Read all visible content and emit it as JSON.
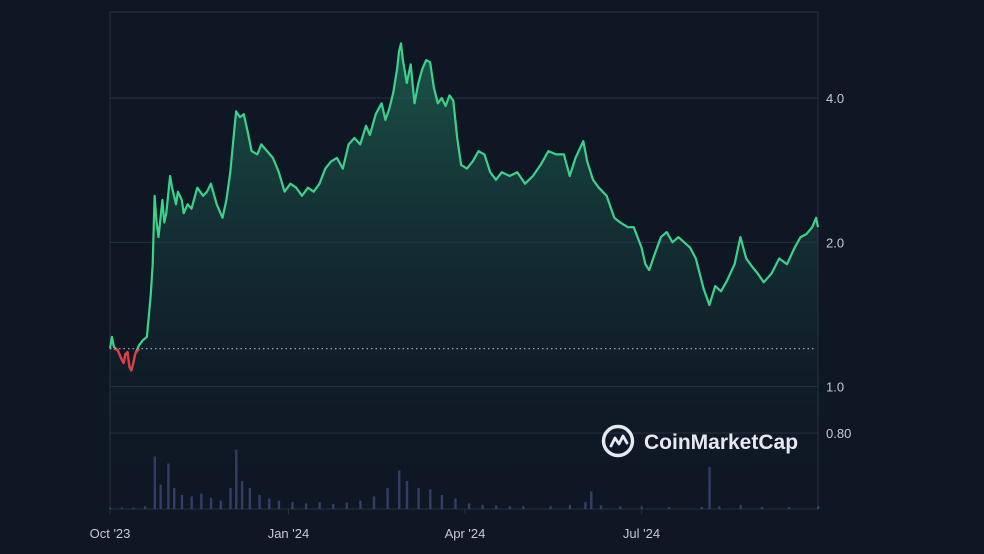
{
  "brand": {
    "watermark": "CoinMarketCap",
    "logo_icon": "coinmarketcap-logo-icon"
  },
  "colors": {
    "background": "#0f1624",
    "up_line": "#3bd38c",
    "down_line": "#ea3943",
    "volume": "#3f4a7c",
    "grid": "#2a3342",
    "baseline": "#9aa3b2"
  },
  "chart_data": {
    "type": "area",
    "scale": "log",
    "grid": true,
    "legend": "none",
    "x_range": [
      "2023-10-01",
      "2024-09-30"
    ],
    "ylim": [
      0.8,
      5.5
    ],
    "y_ticks": [
      {
        "value": 0.8,
        "label": "0.80"
      },
      {
        "value": 1.0,
        "label": "1.0"
      },
      {
        "value": 2.0,
        "label": "2.0"
      },
      {
        "value": 4.0,
        "label": "4.0"
      }
    ],
    "x_ticks": [
      {
        "date": "2023-10-01",
        "label": "Oct '23"
      },
      {
        "date": "2024-01-01",
        "label": "Jan '24"
      },
      {
        "date": "2024-04-01",
        "label": "Apr '24"
      },
      {
        "date": "2024-07-01",
        "label": "Jul '24"
      }
    ],
    "baseline_value": 1.2,
    "price_series": [
      [
        "2023-10-01",
        1.2
      ],
      [
        "2023-10-02",
        1.27
      ],
      [
        "2023-10-03",
        1.21
      ],
      [
        "2023-10-05",
        1.19
      ],
      [
        "2023-10-07",
        1.14
      ],
      [
        "2023-10-08",
        1.12
      ],
      [
        "2023-10-09",
        1.17
      ],
      [
        "2023-10-10",
        1.18
      ],
      [
        "2023-10-11",
        1.1
      ],
      [
        "2023-10-12",
        1.08
      ],
      [
        "2023-10-13",
        1.12
      ],
      [
        "2023-10-14",
        1.17
      ],
      [
        "2023-10-16",
        1.22
      ],
      [
        "2023-10-18",
        1.25
      ],
      [
        "2023-10-20",
        1.27
      ],
      [
        "2023-10-22",
        1.55
      ],
      [
        "2023-10-23",
        1.8
      ],
      [
        "2023-10-24",
        2.5
      ],
      [
        "2023-10-25",
        2.2
      ],
      [
        "2023-10-26",
        2.05
      ],
      [
        "2023-10-28",
        2.45
      ],
      [
        "2023-10-29",
        2.2
      ],
      [
        "2023-10-30",
        2.3
      ],
      [
        "2023-11-01",
        2.75
      ],
      [
        "2023-11-02",
        2.6
      ],
      [
        "2023-11-04",
        2.4
      ],
      [
        "2023-11-05",
        2.55
      ],
      [
        "2023-11-07",
        2.45
      ],
      [
        "2023-11-08",
        2.3
      ],
      [
        "2023-11-10",
        2.4
      ],
      [
        "2023-11-12",
        2.35
      ],
      [
        "2023-11-15",
        2.6
      ],
      [
        "2023-11-18",
        2.5
      ],
      [
        "2023-11-20",
        2.55
      ],
      [
        "2023-11-22",
        2.65
      ],
      [
        "2023-11-25",
        2.4
      ],
      [
        "2023-11-28",
        2.25
      ],
      [
        "2023-11-30",
        2.45
      ],
      [
        "2023-12-02",
        2.8
      ],
      [
        "2023-12-04",
        3.4
      ],
      [
        "2023-12-05",
        3.75
      ],
      [
        "2023-12-07",
        3.65
      ],
      [
        "2023-12-09",
        3.7
      ],
      [
        "2023-12-11",
        3.4
      ],
      [
        "2023-12-13",
        3.1
      ],
      [
        "2023-12-16",
        3.05
      ],
      [
        "2023-12-18",
        3.2
      ],
      [
        "2023-12-21",
        3.1
      ],
      [
        "2023-12-24",
        3.0
      ],
      [
        "2023-12-27",
        2.8
      ],
      [
        "2023-12-30",
        2.55
      ],
      [
        "2024-01-02",
        2.65
      ],
      [
        "2024-01-05",
        2.6
      ],
      [
        "2024-01-08",
        2.5
      ],
      [
        "2024-01-11",
        2.6
      ],
      [
        "2024-01-14",
        2.55
      ],
      [
        "2024-01-17",
        2.65
      ],
      [
        "2024-01-20",
        2.85
      ],
      [
        "2024-01-23",
        2.95
      ],
      [
        "2024-01-26",
        3.0
      ],
      [
        "2024-01-29",
        2.85
      ],
      [
        "2024-02-01",
        3.2
      ],
      [
        "2024-02-04",
        3.3
      ],
      [
        "2024-02-07",
        3.2
      ],
      [
        "2024-02-10",
        3.5
      ],
      [
        "2024-02-12",
        3.35
      ],
      [
        "2024-02-15",
        3.7
      ],
      [
        "2024-02-18",
        3.9
      ],
      [
        "2024-02-20",
        3.6
      ],
      [
        "2024-02-22",
        3.8
      ],
      [
        "2024-02-24",
        4.1
      ],
      [
        "2024-02-26",
        4.6
      ],
      [
        "2024-02-27",
        5.0
      ],
      [
        "2024-02-28",
        5.2
      ],
      [
        "2024-02-29",
        4.8
      ],
      [
        "2024-03-02",
        4.3
      ],
      [
        "2024-03-04",
        4.7
      ],
      [
        "2024-03-06",
        3.9
      ],
      [
        "2024-03-08",
        4.3
      ],
      [
        "2024-03-10",
        4.6
      ],
      [
        "2024-03-12",
        4.8
      ],
      [
        "2024-03-14",
        4.75
      ],
      [
        "2024-03-16",
        4.2
      ],
      [
        "2024-03-18",
        3.9
      ],
      [
        "2024-03-20",
        4.0
      ],
      [
        "2024-03-22",
        3.85
      ],
      [
        "2024-03-24",
        4.05
      ],
      [
        "2024-03-26",
        3.95
      ],
      [
        "2024-03-28",
        3.3
      ],
      [
        "2024-03-30",
        2.9
      ],
      [
        "2024-04-02",
        2.85
      ],
      [
        "2024-04-05",
        2.95
      ],
      [
        "2024-04-08",
        3.1
      ],
      [
        "2024-04-11",
        3.05
      ],
      [
        "2024-04-14",
        2.8
      ],
      [
        "2024-04-17",
        2.7
      ],
      [
        "2024-04-20",
        2.8
      ],
      [
        "2024-04-24",
        2.75
      ],
      [
        "2024-04-28",
        2.8
      ],
      [
        "2024-05-02",
        2.65
      ],
      [
        "2024-05-06",
        2.75
      ],
      [
        "2024-05-10",
        2.9
      ],
      [
        "2024-05-14",
        3.1
      ],
      [
        "2024-05-18",
        3.05
      ],
      [
        "2024-05-22",
        3.05
      ],
      [
        "2024-05-25",
        2.75
      ],
      [
        "2024-05-28",
        3.0
      ],
      [
        "2024-06-01",
        3.25
      ],
      [
        "2024-06-03",
        2.95
      ],
      [
        "2024-06-06",
        2.7
      ],
      [
        "2024-06-09",
        2.6
      ],
      [
        "2024-06-13",
        2.5
      ],
      [
        "2024-06-17",
        2.25
      ],
      [
        "2024-06-20",
        2.2
      ],
      [
        "2024-06-24",
        2.15
      ],
      [
        "2024-06-27",
        2.15
      ],
      [
        "2024-07-01",
        1.95
      ],
      [
        "2024-07-03",
        1.8
      ],
      [
        "2024-07-05",
        1.75
      ],
      [
        "2024-07-08",
        1.9
      ],
      [
        "2024-07-11",
        2.05
      ],
      [
        "2024-07-14",
        2.1
      ],
      [
        "2024-07-17",
        2.0
      ],
      [
        "2024-07-20",
        2.05
      ],
      [
        "2024-07-23",
        2.0
      ],
      [
        "2024-07-26",
        1.95
      ],
      [
        "2024-07-29",
        1.85
      ],
      [
        "2024-08-02",
        1.6
      ],
      [
        "2024-08-05",
        1.48
      ],
      [
        "2024-08-08",
        1.62
      ],
      [
        "2024-08-11",
        1.58
      ],
      [
        "2024-08-14",
        1.66
      ],
      [
        "2024-08-18",
        1.8
      ],
      [
        "2024-08-21",
        2.05
      ],
      [
        "2024-08-24",
        1.85
      ],
      [
        "2024-08-27",
        1.78
      ],
      [
        "2024-08-30",
        1.72
      ],
      [
        "2024-09-02",
        1.65
      ],
      [
        "2024-09-06",
        1.72
      ],
      [
        "2024-09-10",
        1.85
      ],
      [
        "2024-09-14",
        1.8
      ],
      [
        "2024-09-18",
        1.95
      ],
      [
        "2024-09-21",
        2.05
      ],
      [
        "2024-09-24",
        2.08
      ],
      [
        "2024-09-27",
        2.15
      ],
      [
        "2024-09-29",
        2.25
      ],
      [
        "2024-09-30",
        2.15
      ]
    ],
    "volume_relative": [
      [
        "2023-10-01",
        0.02
      ],
      [
        "2023-10-07",
        0.02
      ],
      [
        "2023-10-13",
        0.02
      ],
      [
        "2023-10-19",
        0.04
      ],
      [
        "2023-10-24",
        0.75
      ],
      [
        "2023-10-27",
        0.35
      ],
      [
        "2023-10-31",
        0.65
      ],
      [
        "2023-11-03",
        0.3
      ],
      [
        "2023-11-07",
        0.2
      ],
      [
        "2023-11-12",
        0.18
      ],
      [
        "2023-11-17",
        0.22
      ],
      [
        "2023-11-22",
        0.16
      ],
      [
        "2023-11-27",
        0.12
      ],
      [
        "2023-12-02",
        0.3
      ],
      [
        "2023-12-05",
        0.85
      ],
      [
        "2023-12-08",
        0.4
      ],
      [
        "2023-12-12",
        0.3
      ],
      [
        "2023-12-17",
        0.2
      ],
      [
        "2023-12-22",
        0.15
      ],
      [
        "2023-12-27",
        0.12
      ],
      [
        "2024-01-03",
        0.1
      ],
      [
        "2024-01-10",
        0.08
      ],
      [
        "2024-01-17",
        0.1
      ],
      [
        "2024-01-24",
        0.07
      ],
      [
        "2024-01-31",
        0.09
      ],
      [
        "2024-02-07",
        0.12
      ],
      [
        "2024-02-14",
        0.18
      ],
      [
        "2024-02-21",
        0.3
      ],
      [
        "2024-02-27",
        0.55
      ],
      [
        "2024-03-02",
        0.4
      ],
      [
        "2024-03-08",
        0.3
      ],
      [
        "2024-03-14",
        0.28
      ],
      [
        "2024-03-20",
        0.2
      ],
      [
        "2024-03-27",
        0.15
      ],
      [
        "2024-04-03",
        0.08
      ],
      [
        "2024-04-10",
        0.06
      ],
      [
        "2024-04-17",
        0.05
      ],
      [
        "2024-04-24",
        0.04
      ],
      [
        "2024-05-01",
        0.04
      ],
      [
        "2024-05-15",
        0.04
      ],
      [
        "2024-05-25",
        0.06
      ],
      [
        "2024-06-02",
        0.1
      ],
      [
        "2024-06-05",
        0.25
      ],
      [
        "2024-06-10",
        0.05
      ],
      [
        "2024-06-20",
        0.04
      ],
      [
        "2024-07-01",
        0.04
      ],
      [
        "2024-07-15",
        0.03
      ],
      [
        "2024-08-01",
        0.03
      ],
      [
        "2024-08-05",
        0.6
      ],
      [
        "2024-08-10",
        0.04
      ],
      [
        "2024-08-21",
        0.06
      ],
      [
        "2024-09-01",
        0.03
      ],
      [
        "2024-09-15",
        0.03
      ],
      [
        "2024-09-30",
        0.04
      ]
    ]
  }
}
